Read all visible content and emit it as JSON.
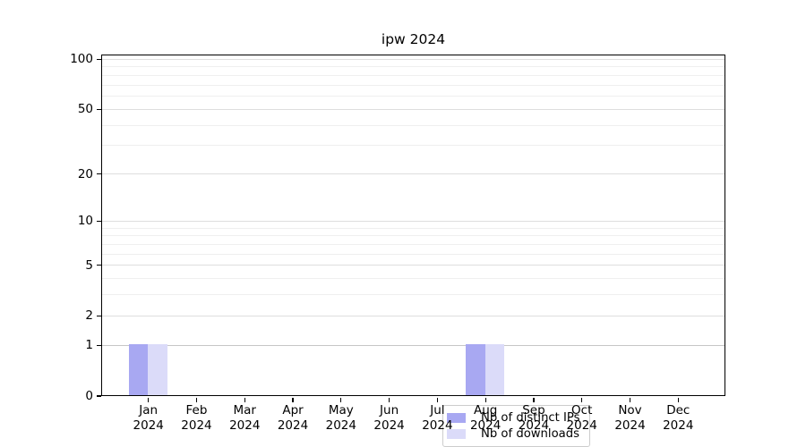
{
  "chart_data": {
    "type": "bar",
    "title": "ipw 2024",
    "categories": [
      "Jan 2024",
      "Feb 2024",
      "Mar 2024",
      "Apr 2024",
      "May 2024",
      "Jun 2024",
      "Jul 2024",
      "Aug 2024",
      "Sep 2024",
      "Oct 2024",
      "Nov 2024",
      "Dec 2024"
    ],
    "month_labels": [
      "Jan",
      "Feb",
      "Mar",
      "Apr",
      "May",
      "Jun",
      "Jul",
      "Aug",
      "Sep",
      "Oct",
      "Nov",
      "Dec"
    ],
    "year_label": "2024",
    "series": [
      {
        "name": "Nb of distinct IPs",
        "color": "#a8a8f2",
        "values": [
          1,
          0,
          0,
          0,
          0,
          0,
          0,
          1,
          0,
          0,
          0,
          0
        ]
      },
      {
        "name": "Nb of downloads",
        "color": "#dbdbf9",
        "values": [
          1,
          0,
          0,
          0,
          0,
          0,
          0,
          1,
          0,
          0,
          0,
          0
        ]
      }
    ],
    "yscale": "log1p",
    "ylim": [
      0,
      107
    ],
    "y_major_ticks": [
      100,
      50,
      20,
      10,
      5,
      2,
      1,
      0
    ],
    "y_minor_ticks": [
      90,
      80,
      70,
      60,
      40,
      30,
      9,
      8,
      7,
      6,
      4,
      3
    ],
    "grid": true,
    "legend_position": "lower center"
  },
  "colors": {
    "grid_major": "#dedede",
    "grid_minor": "#efefef",
    "grid_unit_line": "#c6c6c6",
    "spine": "#000000"
  }
}
